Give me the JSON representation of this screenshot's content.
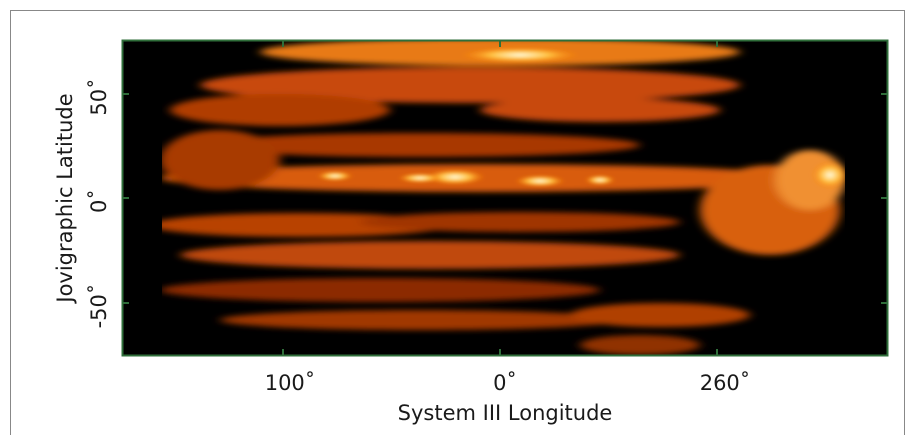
{
  "figure": {
    "x_label": "System III Longitude",
    "y_label": "Jovigraphic Latitude",
    "x_tick_labels": [
      "100˚",
      "0˚",
      "260˚"
    ],
    "y_tick_labels": [
      "50˚",
      "0˚",
      "-50˚"
    ]
  }
}
